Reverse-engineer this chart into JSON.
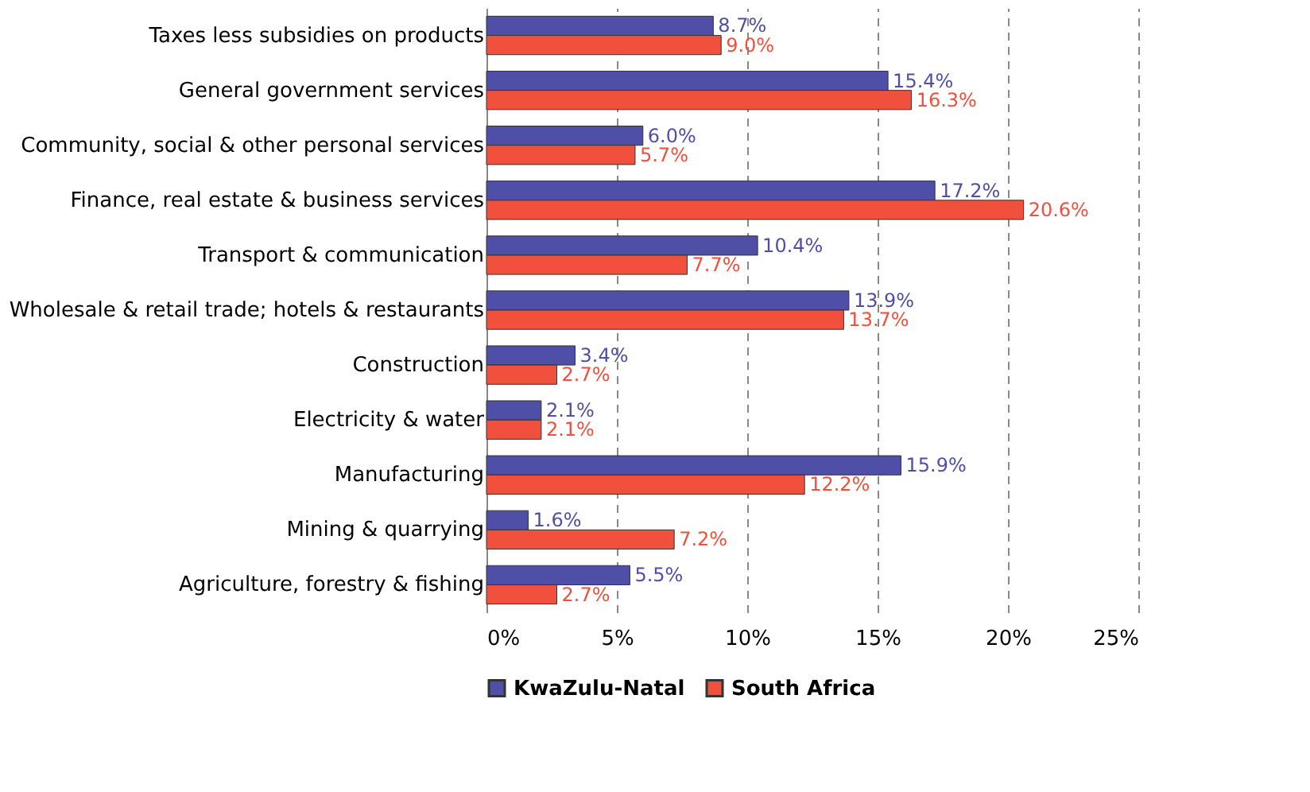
{
  "chart_data": {
    "type": "bar",
    "orientation": "horizontal",
    "categories": [
      "Taxes less subsidies on products",
      "General government services",
      "Community, social & other personal services",
      "Finance, real estate & business services",
      "Transport  & communication",
      "Wholesale & retail trade; hotels & restaurants",
      "Construction",
      "Electricity & water",
      "Manufacturing",
      "Mining & quarrying",
      "Agriculture, forestry & fishing"
    ],
    "series": [
      {
        "name": "KwaZulu-Natal",
        "color": "#4f4fa8",
        "values": [
          8.7,
          15.4,
          6.0,
          17.2,
          10.4,
          13.9,
          3.4,
          2.1,
          15.9,
          1.6,
          5.5
        ],
        "value_labels": [
          "8.7%",
          "15.4%",
          "6.0%",
          "17.2%",
          "10.4%",
          "13.9%",
          "3.4%",
          "2.1%",
          "15.9%",
          "1.6%",
          "5.5%"
        ]
      },
      {
        "name": "South Africa",
        "color": "#f0503c",
        "values": [
          9.0,
          16.3,
          5.7,
          20.6,
          7.7,
          13.7,
          2.7,
          2.1,
          12.2,
          7.2,
          2.7
        ],
        "value_labels": [
          "9.0%",
          "16.3%",
          "5.7%",
          "20.6%",
          "7.7%",
          "13.7%",
          "2.7%",
          "2.1%",
          "12.2%",
          "7.2%",
          "2.7%"
        ]
      }
    ],
    "xlim": [
      0,
      25
    ],
    "xticks": [
      {
        "value": 0,
        "label": "0%"
      },
      {
        "value": 5,
        "label": "5%"
      },
      {
        "value": 10,
        "label": "10%"
      },
      {
        "value": 15,
        "label": "15%"
      },
      {
        "value": 20,
        "label": "20%"
      },
      {
        "value": 25,
        "label": "25%"
      }
    ],
    "grid": "x",
    "legend": "bottom"
  }
}
